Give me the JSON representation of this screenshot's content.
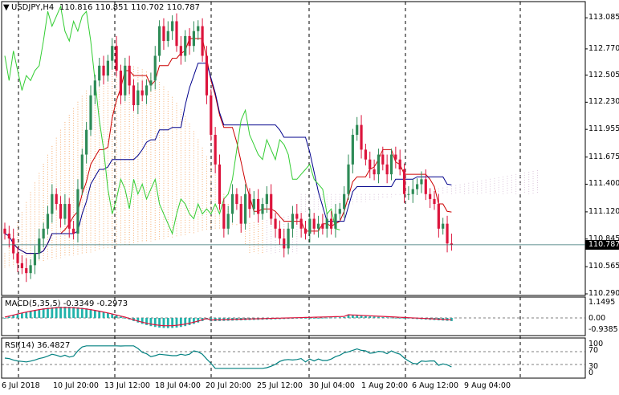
{
  "header": {
    "title": "USDJPY,H4",
    "ohlc": "110.816 110.851 110.702 110.787",
    "marker": "▼"
  },
  "current_price_tag": "110.787",
  "price_axis": [
    "113.085",
    "112.770",
    "112.505",
    "112.230",
    "111.955",
    "111.675",
    "111.400",
    "111.120",
    "110.845",
    "110.565",
    "110.290"
  ],
  "macd_panel": {
    "label": "MACD(5,35,5) -0.3349 -0.2973",
    "axis": [
      "1.1495",
      "0.00",
      "-0.9385"
    ]
  },
  "rsi_panel": {
    "label": "RSI(14) 36.4827",
    "axis": [
      "100",
      "70",
      "30",
      "0"
    ]
  },
  "time_axis": [
    "6 Jul 2018",
    "10 Jul 20:00",
    "13 Jul 12:00",
    "18 Jul 04:00",
    "20 Jul 20:00",
    "25 Jul 12:00",
    "30 Jul 04:00",
    "1 Aug 20:00",
    "6 Aug 12:00",
    "9 Aug 04:00"
  ],
  "colors": {
    "bull_candle": "#2e8b57",
    "bear_candle": "#dc143c",
    "tenkan": "#cc0000",
    "kijun": "#00008b",
    "chikou": "#32cd32",
    "kumo_bull": "#f4a460",
    "kumo_bear": "#d8bfd8",
    "macd_hist": "#20b2aa",
    "macd_signal": "#dc143c",
    "rsi_line": "#008080",
    "grid": "#000000"
  },
  "chart_data": {
    "type": "candlestick",
    "symbol": "USDJPY",
    "timeframe": "H4",
    "ylim": [
      110.29,
      113.2
    ],
    "closes": [
      110.9,
      110.85,
      110.7,
      110.6,
      110.55,
      110.5,
      110.58,
      110.7,
      110.85,
      110.95,
      111.1,
      111.3,
      111.2,
      111.05,
      111.2,
      110.95,
      110.9,
      111.35,
      111.7,
      111.95,
      112.3,
      112.45,
      112.6,
      112.5,
      112.65,
      112.8,
      112.55,
      112.3,
      112.6,
      112.4,
      112.2,
      112.35,
      112.3,
      112.4,
      112.45,
      112.7,
      113.0,
      112.85,
      112.95,
      113.05,
      112.8,
      112.7,
      112.9,
      112.8,
      112.95,
      113.0,
      112.7,
      112.3,
      111.9,
      111.6,
      111.2,
      110.95,
      111.1,
      111.3,
      111.2,
      111.0,
      111.3,
      111.15,
      111.25,
      111.1,
      111.2,
      111.3,
      111.05,
      110.95,
      110.85,
      110.75,
      110.95,
      111.1,
      111.05,
      110.95,
      110.9,
      111.05,
      110.95,
      111.0,
      110.95,
      111.05,
      110.95,
      111.1,
      111.15,
      111.3,
      111.6,
      111.9,
      112.0,
      111.75,
      111.65,
      111.55,
      111.5,
      111.7,
      111.6,
      111.5,
      111.7,
      111.65,
      111.55,
      111.3,
      111.3,
      111.35,
      111.4,
      111.45,
      111.3,
      111.25,
      111.2,
      110.95,
      111.0,
      110.8,
      110.787
    ],
    "series": [
      {
        "name": "MACD(5,35,5)",
        "value": -0.3349,
        "signal": -0.2973
      },
      {
        "name": "RSI(14)",
        "value": 36.4827,
        "levels": [
          70,
          30
        ]
      }
    ]
  }
}
